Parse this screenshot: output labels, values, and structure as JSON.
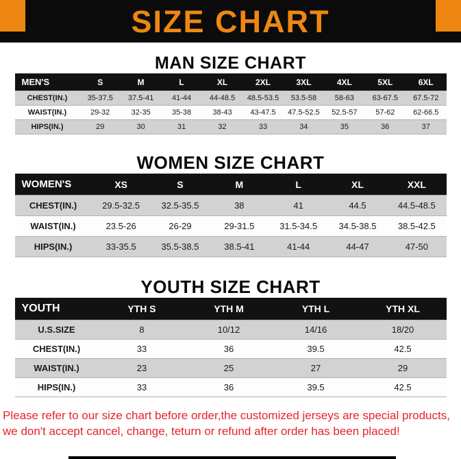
{
  "colors": {
    "accent_orange": "#ee8712",
    "banner_black": "#0b0b0b",
    "table_header_black": "#121212",
    "row_gray": "#d2d2d2",
    "footer_red": "#e6232a"
  },
  "banner": {
    "title": "SIZE CHART"
  },
  "sections": [
    {
      "heading": "MAN SIZE CHART",
      "table": {
        "header": [
          "MEN'S",
          "S",
          "M",
          "L",
          "XL",
          "2XL",
          "3XL",
          "4XL",
          "5XL",
          "6XL"
        ],
        "rows": [
          [
            "CHEST(IN.)",
            "35-37.5",
            "37.5-41",
            "41-44",
            "44-48.5",
            "48.5-53.5",
            "53.5-58",
            "58-63",
            "63-67.5",
            "67.5-72"
          ],
          [
            "WAIST(IN.)",
            "29-32",
            "32-35",
            "35-38",
            "38-43",
            "43-47.5",
            "47.5-52.5",
            "52.5-57",
            "57-62",
            "62-66.5"
          ],
          [
            "HIPS(IN.)",
            "29",
            "30",
            "31",
            "32",
            "33",
            "34",
            "35",
            "36",
            "37"
          ]
        ]
      }
    },
    {
      "heading": "WOMEN SIZE CHART",
      "table": {
        "header": [
          "WOMEN'S",
          "XS",
          "S",
          "M",
          "L",
          "XL",
          "XXL"
        ],
        "rows": [
          [
            "CHEST(IN.)",
            "29.5-32.5",
            "32.5-35.5",
            "38",
            "41",
            "44.5",
            "44.5-48.5"
          ],
          [
            "WAIST(IN.)",
            "23.5-26",
            "26-29",
            "29-31.5",
            "31.5-34.5",
            "34.5-38.5",
            "38.5-42.5"
          ],
          [
            "HIPS(IN.)",
            "33-35.5",
            "35.5-38.5",
            "38.5-41",
            "41-44",
            "44-47",
            "47-50"
          ]
        ]
      }
    },
    {
      "heading": "YOUTH SIZE CHART",
      "table": {
        "header": [
          "YOUTH",
          "YTH S",
          "YTH M",
          "YTH L",
          "YTH XL"
        ],
        "rows": [
          [
            "U.S.SIZE",
            "8",
            "10/12",
            "14/16",
            "18/20"
          ],
          [
            "CHEST(IN.)",
            "33",
            "36",
            "39.5",
            "42.5"
          ],
          [
            "WAIST(IN.)",
            "23",
            "25",
            "27",
            "29"
          ],
          [
            "HIPS(IN.)",
            "33",
            "36",
            "39.5",
            "42.5"
          ]
        ]
      }
    }
  ],
  "footer": {
    "line1": "Please refer to our size chart before order,the customized jerseys are special products,",
    "line2": "we don't accept cancel, change, teturn or refund after order has been placed!"
  }
}
